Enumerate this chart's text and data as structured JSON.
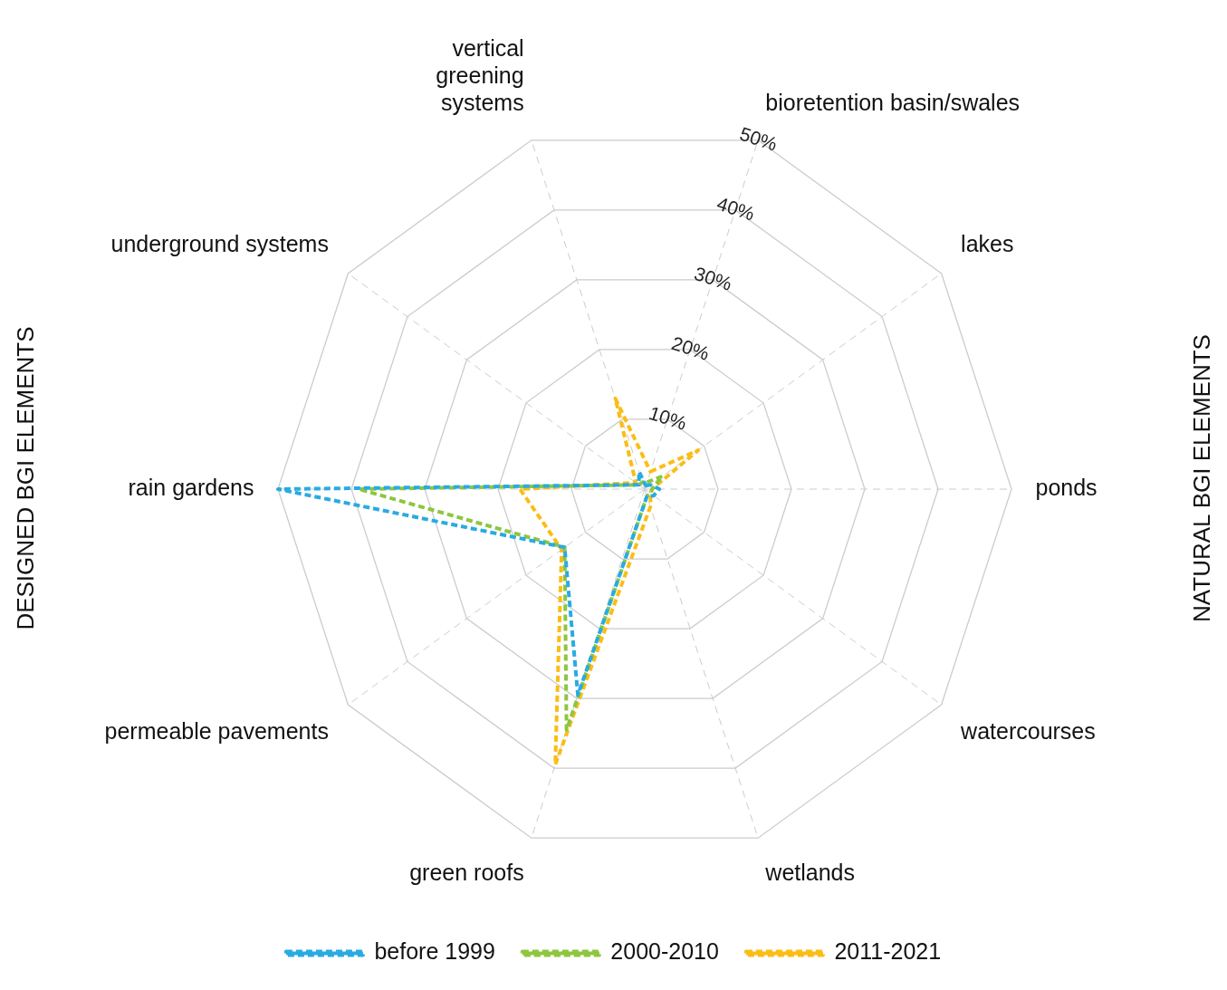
{
  "chart_data": {
    "type": "radar",
    "categories": [
      "bioretention basin/swales",
      "lakes",
      "ponds",
      "watercourses",
      "wetlands",
      "green roofs",
      "permeable pavements",
      "rain gardens",
      "underground systems",
      "vertical greening systems"
    ],
    "series": [
      {
        "name": "before 1999",
        "color": "#29abe2",
        "values": [
          0.5,
          1,
          2,
          1.5,
          1,
          29.5,
          13.5,
          50,
          1,
          2.5
        ]
      },
      {
        "name": "2000-2010",
        "color": "#8dc63f",
        "values": [
          1,
          3,
          1,
          1,
          1,
          34.5,
          13.5,
          39,
          1,
          1
        ]
      },
      {
        "name": "2011-2021",
        "color": "#fbbd15",
        "values": [
          2.5,
          9,
          1,
          1,
          2.5,
          39.5,
          14,
          17,
          1.5,
          13
        ]
      }
    ],
    "ylim": [
      0,
      50
    ],
    "yticks": [
      {
        "value": 10,
        "label": "10%"
      },
      {
        "value": 20,
        "label": "20%"
      },
      {
        "value": 30,
        "label": "30%"
      },
      {
        "value": 40,
        "label": "40%"
      },
      {
        "value": 50,
        "label": "50%"
      }
    ],
    "grid": true,
    "legend": "bottom",
    "line_style": "dashed",
    "marker": "none",
    "annotations": [
      "DESIGNED BGI ELEMENTS",
      "NATURAL BGI ELEMENTS"
    ]
  }
}
